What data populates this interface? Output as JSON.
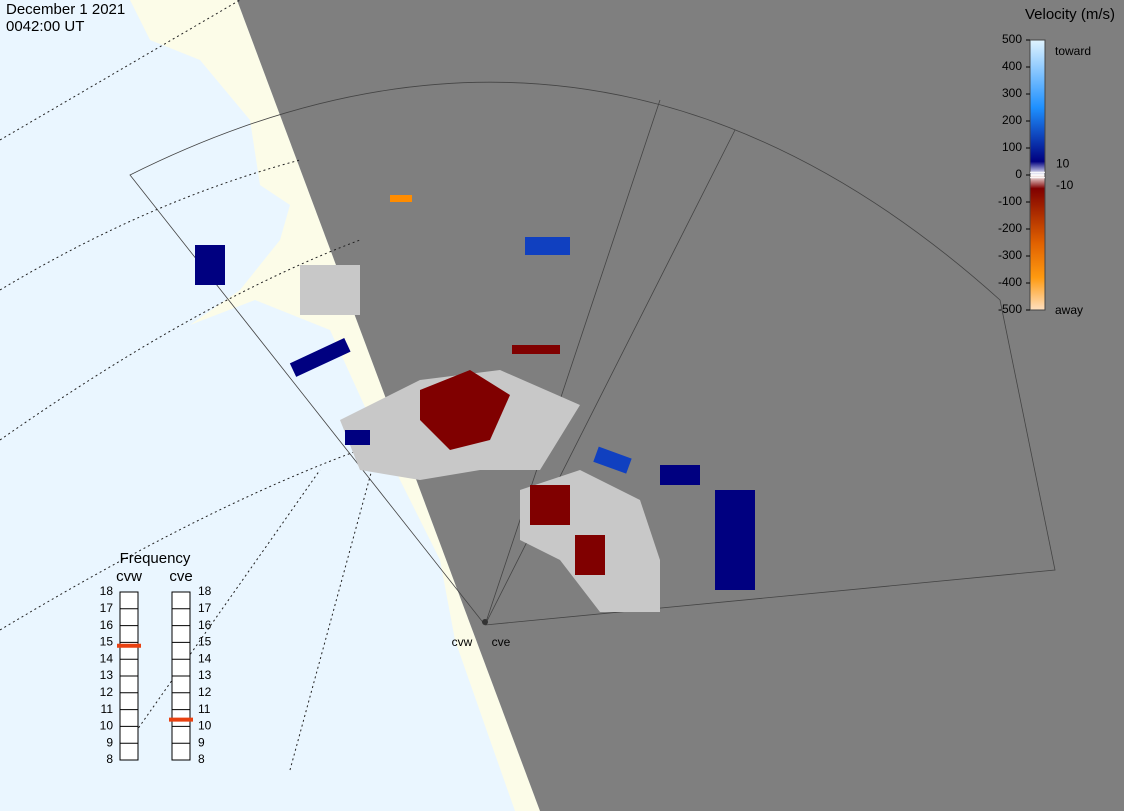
{
  "header": {
    "date": "December 1 2021",
    "time": "0042:00 UT"
  },
  "colorbar": {
    "title": "Velocity (m/s)",
    "range": [
      -500,
      500
    ],
    "ticks": [
      500,
      400,
      300,
      200,
      100,
      0,
      -100,
      -200,
      -300,
      -400,
      -500
    ],
    "inner_ticks": [
      10,
      -10
    ],
    "top_label": "toward",
    "bottom_label": "away"
  },
  "frequency": {
    "title": "Frequency",
    "range": [
      8,
      18
    ],
    "ticks": [
      8,
      9,
      10,
      11,
      12,
      13,
      14,
      15,
      16,
      17,
      18
    ],
    "radars": [
      {
        "name": "cvw",
        "value": 14.8
      },
      {
        "name": "cve",
        "value": 10.4
      }
    ]
  },
  "stations": [
    "cvw",
    "cve"
  ]
}
